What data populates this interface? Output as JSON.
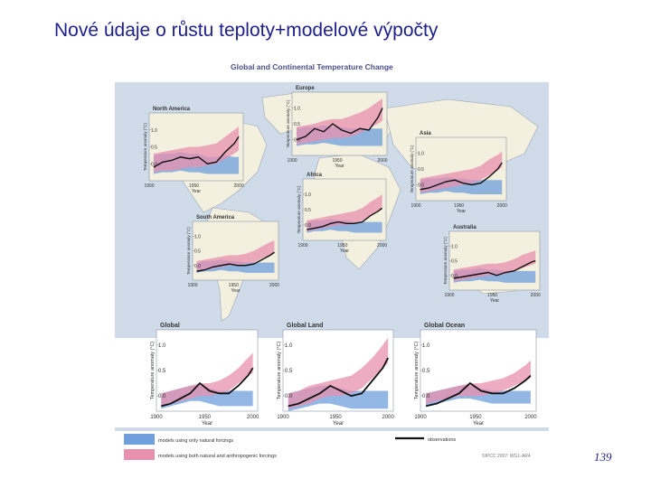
{
  "slide": {
    "title": "Nové údaje o růstu teploty+modelové výpočty",
    "page_number": "139"
  },
  "figure": {
    "heading": "Global and Continental Temperature Change",
    "credit": "©IPCC 2007: WG1-AR4",
    "colors": {
      "natural_band": "#6f9fdc",
      "anthropogenic_band": "#e890ae",
      "observations": "#111111",
      "map_ocean": "#cfdbe8",
      "map_land": "#f4f0df"
    },
    "legend": {
      "natural": "models using only natural forcings",
      "anthropogenic": "models using both natural and anthropogenic forcings",
      "observations": "observations"
    }
  },
  "chart_data": [
    {
      "type": "line",
      "panel": "north-america",
      "title": "North America",
      "ylabel": "Temperature anomaly (°C)",
      "xlabel": "Year",
      "xticks": [
        "1900",
        "1950",
        "2000"
      ],
      "yticks": [
        "0.0",
        "0.5",
        "1.0"
      ],
      "xlim": [
        1900,
        2005
      ],
      "ylim": [
        -0.5,
        1.5
      ],
      "x": [
        1905,
        1915,
        1925,
        1935,
        1945,
        1955,
        1965,
        1975,
        1985,
        1995,
        2000
      ],
      "observations": [
        -0.1,
        0.05,
        0.1,
        0.2,
        0.15,
        0.2,
        0.0,
        0.05,
        0.35,
        0.6,
        0.8
      ],
      "natural": [
        [
          -0.3,
          0.25
        ],
        [
          -0.25,
          0.3
        ],
        [
          -0.25,
          0.3
        ],
        [
          -0.2,
          0.35
        ],
        [
          -0.25,
          0.3
        ],
        [
          -0.25,
          0.3
        ],
        [
          -0.3,
          0.2
        ],
        [
          -0.3,
          0.2
        ],
        [
          -0.3,
          0.25
        ],
        [
          -0.3,
          0.2
        ],
        [
          -0.3,
          0.2
        ]
      ],
      "anthropogenic": [
        [
          -0.25,
          0.3
        ],
        [
          -0.2,
          0.35
        ],
        [
          -0.2,
          0.4
        ],
        [
          -0.15,
          0.45
        ],
        [
          -0.1,
          0.5
        ],
        [
          -0.1,
          0.5
        ],
        [
          -0.05,
          0.55
        ],
        [
          0.0,
          0.6
        ],
        [
          0.15,
          0.8
        ],
        [
          0.3,
          1.0
        ],
        [
          0.4,
          1.1
        ]
      ]
    },
    {
      "type": "line",
      "panel": "europe",
      "title": "Europe",
      "ylabel": "Temperature anomaly (°C)",
      "xlabel": "Year",
      "xticks": [
        "1900",
        "1950",
        "2000"
      ],
      "yticks": [
        "0.0",
        "0.5",
        "1.0"
      ],
      "xlim": [
        1900,
        2005
      ],
      "ylim": [
        -0.5,
        1.5
      ],
      "x": [
        1905,
        1915,
        1925,
        1935,
        1945,
        1955,
        1965,
        1975,
        1985,
        1995,
        2000
      ],
      "observations": [
        0.0,
        0.1,
        0.35,
        0.25,
        0.5,
        0.3,
        0.2,
        0.35,
        0.3,
        0.7,
        1.0
      ],
      "natural": [
        [
          -0.2,
          0.35
        ],
        [
          -0.15,
          0.4
        ],
        [
          -0.15,
          0.4
        ],
        [
          -0.1,
          0.45
        ],
        [
          -0.15,
          0.4
        ],
        [
          -0.2,
          0.4
        ],
        [
          -0.2,
          0.35
        ],
        [
          -0.2,
          0.35
        ],
        [
          -0.2,
          0.35
        ],
        [
          -0.2,
          0.35
        ],
        [
          -0.2,
          0.35
        ]
      ],
      "anthropogenic": [
        [
          -0.15,
          0.4
        ],
        [
          -0.1,
          0.45
        ],
        [
          -0.05,
          0.5
        ],
        [
          0.0,
          0.6
        ],
        [
          0.05,
          0.65
        ],
        [
          0.05,
          0.65
        ],
        [
          0.1,
          0.75
        ],
        [
          0.2,
          0.85
        ],
        [
          0.35,
          1.0
        ],
        [
          0.5,
          1.2
        ],
        [
          0.6,
          1.3
        ]
      ]
    },
    {
      "type": "line",
      "panel": "asia",
      "title": "Asia",
      "ylabel": "Temperature anomaly (°C)",
      "xlabel": "Year",
      "xticks": [
        "1900",
        "1950",
        "2000"
      ],
      "yticks": [
        "0.0",
        "0.5",
        "1.0"
      ],
      "xlim": [
        1900,
        2005
      ],
      "ylim": [
        -0.5,
        1.5
      ],
      "x": [
        1905,
        1915,
        1925,
        1935,
        1945,
        1955,
        1965,
        1975,
        1985,
        1995,
        2000
      ],
      "observations": [
        -0.15,
        -0.1,
        0.0,
        0.1,
        0.15,
        0.05,
        0.0,
        0.05,
        0.25,
        0.5,
        0.7
      ],
      "natural": [
        [
          -0.3,
          0.15
        ],
        [
          -0.25,
          0.2
        ],
        [
          -0.25,
          0.2
        ],
        [
          -0.2,
          0.25
        ],
        [
          -0.25,
          0.2
        ],
        [
          -0.25,
          0.2
        ],
        [
          -0.3,
          0.15
        ],
        [
          -0.3,
          0.15
        ],
        [
          -0.3,
          0.15
        ],
        [
          -0.3,
          0.15
        ],
        [
          -0.3,
          0.15
        ]
      ],
      "anthropogenic": [
        [
          -0.25,
          0.2
        ],
        [
          -0.2,
          0.25
        ],
        [
          -0.15,
          0.3
        ],
        [
          -0.1,
          0.35
        ],
        [
          -0.05,
          0.4
        ],
        [
          0.0,
          0.45
        ],
        [
          0.05,
          0.5
        ],
        [
          0.15,
          0.6
        ],
        [
          0.3,
          0.8
        ],
        [
          0.45,
          0.95
        ],
        [
          0.55,
          1.05
        ]
      ]
    },
    {
      "type": "line",
      "panel": "africa",
      "title": "Africa",
      "ylabel": "Temperature anomaly (°C)",
      "xlabel": "Year",
      "xticks": [
        "1900",
        "1950",
        "2000"
      ],
      "yticks": [
        "0.0",
        "0.5",
        "1.0"
      ],
      "xlim": [
        1900,
        2005
      ],
      "ylim": [
        -0.5,
        1.5
      ],
      "x": [
        1905,
        1915,
        1925,
        1935,
        1945,
        1955,
        1965,
        1975,
        1985,
        1995,
        2000
      ],
      "observations": [
        -0.15,
        -0.1,
        -0.05,
        0.05,
        0.1,
        0.05,
        0.05,
        0.1,
        0.3,
        0.45,
        0.55
      ],
      "natural": [
        [
          -0.25,
          0.1
        ],
        [
          -0.2,
          0.15
        ],
        [
          -0.2,
          0.15
        ],
        [
          -0.15,
          0.2
        ],
        [
          -0.2,
          0.15
        ],
        [
          -0.2,
          0.15
        ],
        [
          -0.25,
          0.1
        ],
        [
          -0.25,
          0.1
        ],
        [
          -0.25,
          0.1
        ],
        [
          -0.25,
          0.1
        ],
        [
          -0.25,
          0.1
        ]
      ],
      "anthropogenic": [
        [
          -0.2,
          0.15
        ],
        [
          -0.15,
          0.2
        ],
        [
          -0.1,
          0.25
        ],
        [
          -0.05,
          0.3
        ],
        [
          0.0,
          0.35
        ],
        [
          0.0,
          0.4
        ],
        [
          0.05,
          0.45
        ],
        [
          0.15,
          0.55
        ],
        [
          0.3,
          0.75
        ],
        [
          0.45,
          0.9
        ],
        [
          0.5,
          1.0
        ]
      ]
    },
    {
      "type": "line",
      "panel": "south-america",
      "title": "South America",
      "ylabel": "Temperature anomaly (°C)",
      "xlabel": "Year",
      "xticks": [
        "1900",
        "1950",
        "2000"
      ],
      "yticks": [
        "0.0",
        "0.5",
        "1.0"
      ],
      "xlim": [
        1900,
        2005
      ],
      "ylim": [
        -0.5,
        1.5
      ],
      "x": [
        1905,
        1915,
        1925,
        1935,
        1945,
        1955,
        1965,
        1975,
        1985,
        1995,
        2000
      ],
      "observations": [
        -0.2,
        -0.15,
        -0.05,
        0.0,
        0.05,
        0.0,
        0.0,
        0.05,
        0.2,
        0.35,
        0.45
      ],
      "natural": [
        [
          -0.25,
          0.1
        ],
        [
          -0.2,
          0.15
        ],
        [
          -0.2,
          0.15
        ],
        [
          -0.15,
          0.2
        ],
        [
          -0.2,
          0.15
        ],
        [
          -0.2,
          0.15
        ],
        [
          -0.25,
          0.1
        ],
        [
          -0.25,
          0.1
        ],
        [
          -0.25,
          0.1
        ],
        [
          -0.25,
          0.1
        ],
        [
          -0.25,
          0.1
        ]
      ],
      "anthropogenic": [
        [
          -0.2,
          0.15
        ],
        [
          -0.15,
          0.2
        ],
        [
          -0.1,
          0.25
        ],
        [
          -0.05,
          0.3
        ],
        [
          0.0,
          0.35
        ],
        [
          0.0,
          0.35
        ],
        [
          0.05,
          0.4
        ],
        [
          0.1,
          0.5
        ],
        [
          0.25,
          0.65
        ],
        [
          0.35,
          0.8
        ],
        [
          0.4,
          0.85
        ]
      ]
    },
    {
      "type": "line",
      "panel": "australia",
      "title": "Australia",
      "ylabel": "Temperature anomaly (°C)",
      "xlabel": "Year",
      "xticks": [
        "1900",
        "1950",
        "2000"
      ],
      "yticks": [
        "0.0",
        "0.5",
        "1.0"
      ],
      "xlim": [
        1900,
        2005
      ],
      "ylim": [
        -0.5,
        1.5
      ],
      "x": [
        1905,
        1915,
        1925,
        1935,
        1945,
        1955,
        1965,
        1975,
        1985,
        1995,
        2000
      ],
      "observations": [
        -0.1,
        -0.05,
        0.0,
        0.05,
        0.1,
        0.0,
        0.1,
        0.15,
        0.3,
        0.45,
        0.5
      ],
      "natural": [
        [
          -0.25,
          0.15
        ],
        [
          -0.2,
          0.2
        ],
        [
          -0.2,
          0.2
        ],
        [
          -0.15,
          0.25
        ],
        [
          -0.2,
          0.2
        ],
        [
          -0.2,
          0.2
        ],
        [
          -0.25,
          0.15
        ],
        [
          -0.25,
          0.15
        ],
        [
          -0.25,
          0.15
        ],
        [
          -0.25,
          0.15
        ],
        [
          -0.25,
          0.15
        ]
      ],
      "anthropogenic": [
        [
          -0.2,
          0.2
        ],
        [
          -0.15,
          0.25
        ],
        [
          -0.1,
          0.3
        ],
        [
          -0.05,
          0.35
        ],
        [
          0.0,
          0.4
        ],
        [
          0.0,
          0.4
        ],
        [
          0.05,
          0.45
        ],
        [
          0.15,
          0.55
        ],
        [
          0.25,
          0.7
        ],
        [
          0.35,
          0.8
        ],
        [
          0.4,
          0.85
        ]
      ]
    },
    {
      "type": "line",
      "panel": "global",
      "title": "Global",
      "ylabel": "Temperature anomaly (°C)",
      "xlabel": "Year",
      "xticks": [
        "1900",
        "1950",
        "2000"
      ],
      "yticks": [
        "0.0",
        "0.5",
        "1.0"
      ],
      "xlim": [
        1900,
        2005
      ],
      "ylim": [
        -0.3,
        1.3
      ],
      "x": [
        1905,
        1915,
        1925,
        1935,
        1945,
        1955,
        1965,
        1975,
        1985,
        1995,
        2000
      ],
      "observations": [
        -0.2,
        -0.15,
        -0.05,
        0.05,
        0.25,
        0.1,
        0.05,
        0.05,
        0.2,
        0.4,
        0.55
      ],
      "natural": [
        [
          -0.25,
          0.05
        ],
        [
          -0.2,
          0.1
        ],
        [
          -0.15,
          0.15
        ],
        [
          -0.1,
          0.2
        ],
        [
          -0.1,
          0.2
        ],
        [
          -0.15,
          0.15
        ],
        [
          -0.2,
          0.1
        ],
        [
          -0.2,
          0.1
        ],
        [
          -0.2,
          0.1
        ],
        [
          -0.2,
          0.1
        ],
        [
          -0.2,
          0.1
        ]
      ],
      "anthropogenic": [
        [
          -0.2,
          0.05
        ],
        [
          -0.15,
          0.1
        ],
        [
          -0.1,
          0.15
        ],
        [
          -0.05,
          0.2
        ],
        [
          0.0,
          0.25
        ],
        [
          0.0,
          0.25
        ],
        [
          0.05,
          0.3
        ],
        [
          0.1,
          0.4
        ],
        [
          0.25,
          0.55
        ],
        [
          0.4,
          0.75
        ],
        [
          0.45,
          0.85
        ]
      ]
    },
    {
      "type": "line",
      "panel": "global-land",
      "title": "Global Land",
      "ylabel": "Temperature anomaly (°C)",
      "xlabel": "Year",
      "xticks": [
        "1900",
        "1950",
        "2000"
      ],
      "yticks": [
        "0.0",
        "0.5",
        "1.0"
      ],
      "xlim": [
        1900,
        2005
      ],
      "ylim": [
        -0.3,
        1.3
      ],
      "x": [
        1905,
        1915,
        1925,
        1935,
        1945,
        1955,
        1965,
        1975,
        1985,
        1995,
        2000
      ],
      "observations": [
        -0.2,
        -0.15,
        -0.05,
        0.05,
        0.2,
        0.1,
        0.0,
        0.05,
        0.3,
        0.55,
        0.75
      ],
      "natural": [
        [
          -0.3,
          0.05
        ],
        [
          -0.25,
          0.1
        ],
        [
          -0.2,
          0.15
        ],
        [
          -0.15,
          0.2
        ],
        [
          -0.15,
          0.2
        ],
        [
          -0.2,
          0.15
        ],
        [
          -0.25,
          0.1
        ],
        [
          -0.25,
          0.1
        ],
        [
          -0.25,
          0.1
        ],
        [
          -0.25,
          0.1
        ],
        [
          -0.25,
          0.1
        ]
      ],
      "anthropogenic": [
        [
          -0.25,
          0.05
        ],
        [
          -0.2,
          0.1
        ],
        [
          -0.15,
          0.2
        ],
        [
          -0.05,
          0.25
        ],
        [
          0.0,
          0.3
        ],
        [
          0.0,
          0.35
        ],
        [
          0.05,
          0.4
        ],
        [
          0.15,
          0.55
        ],
        [
          0.35,
          0.75
        ],
        [
          0.55,
          1.0
        ],
        [
          0.65,
          1.15
        ]
      ]
    },
    {
      "type": "line",
      "panel": "global-ocean",
      "title": "Global Ocean",
      "ylabel": "Temperature anomaly (°C)",
      "xlabel": "Year",
      "xticks": [
        "1900",
        "1950",
        "2000"
      ],
      "yticks": [
        "0.0",
        "0.5",
        "1.0"
      ],
      "xlim": [
        1900,
        2005
      ],
      "ylim": [
        -0.3,
        1.3
      ],
      "x": [
        1905,
        1915,
        1925,
        1935,
        1945,
        1955,
        1965,
        1975,
        1985,
        1995,
        2000
      ],
      "observations": [
        -0.2,
        -0.15,
        -0.05,
        0.05,
        0.25,
        0.1,
        0.05,
        0.05,
        0.15,
        0.3,
        0.4
      ],
      "natural": [
        [
          -0.2,
          0.05
        ],
        [
          -0.15,
          0.1
        ],
        [
          -0.1,
          0.15
        ],
        [
          -0.05,
          0.2
        ],
        [
          -0.05,
          0.2
        ],
        [
          -0.1,
          0.15
        ],
        [
          -0.15,
          0.1
        ],
        [
          -0.15,
          0.1
        ],
        [
          -0.15,
          0.1
        ],
        [
          -0.15,
          0.1
        ],
        [
          -0.15,
          0.1
        ]
      ],
      "anthropogenic": [
        [
          -0.15,
          0.05
        ],
        [
          -0.1,
          0.1
        ],
        [
          -0.05,
          0.15
        ],
        [
          0.0,
          0.2
        ],
        [
          0.0,
          0.25
        ],
        [
          0.0,
          0.25
        ],
        [
          0.05,
          0.3
        ],
        [
          0.1,
          0.35
        ],
        [
          0.2,
          0.45
        ],
        [
          0.3,
          0.6
        ],
        [
          0.35,
          0.7
        ]
      ]
    }
  ]
}
